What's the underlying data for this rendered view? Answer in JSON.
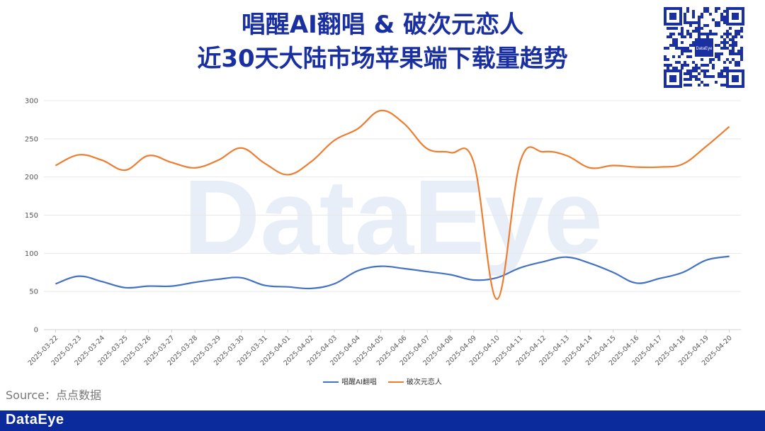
{
  "title": {
    "line1": "唱醒AI翻唱 & 破次元恋人",
    "line2": "近30天大陆市场苹果端下载量趋势"
  },
  "qr": {
    "center_text": "DataEye"
  },
  "watermark": "DataEye",
  "source": "Source：点点数据",
  "footer": {
    "brand": "DataEye",
    "bar_color": "#0b2a9c"
  },
  "chart_data": {
    "type": "line",
    "x": [
      "2025-03-22",
      "2025-03-23",
      "2025-03-24",
      "2025-03-25",
      "2025-03-26",
      "2025-03-27",
      "2025-03-28",
      "2025-03-29",
      "2025-03-30",
      "2025-03-31",
      "2025-04-01",
      "2025-04-02",
      "2025-04-03",
      "2025-04-04",
      "2025-04-05",
      "2025-04-06",
      "2025-04-07",
      "2025-04-08",
      "2025-04-09",
      "2025-04-10",
      "2025-04-11",
      "2025-04-12",
      "2025-04-13",
      "2025-04-14",
      "2025-04-15",
      "2025-04-16",
      "2025-04-17",
      "2025-04-18",
      "2025-04-19",
      "2025-04-20"
    ],
    "ylim": [
      0,
      300
    ],
    "yticks": [
      0,
      50,
      100,
      150,
      200,
      250,
      300
    ],
    "series": [
      {
        "name": "唱醒AI翻唱",
        "color": "#4472c4",
        "values": [
          60,
          70,
          63,
          55,
          57,
          57,
          62,
          66,
          68,
          58,
          56,
          54,
          60,
          77,
          83,
          80,
          76,
          72,
          65,
          68,
          81,
          89,
          95,
          87,
          75,
          61,
          67,
          75,
          91,
          96
        ]
      },
      {
        "name": "破次元恋人",
        "color": "#ed7d31",
        "values": [
          215,
          229,
          222,
          209,
          228,
          219,
          212,
          222,
          238,
          218,
          203,
          220,
          248,
          263,
          287,
          270,
          237,
          232,
          219,
          40,
          220,
          233,
          228,
          212,
          215,
          213,
          213,
          217,
          240,
          266
        ]
      }
    ],
    "grid": true,
    "legend": "bottom"
  }
}
